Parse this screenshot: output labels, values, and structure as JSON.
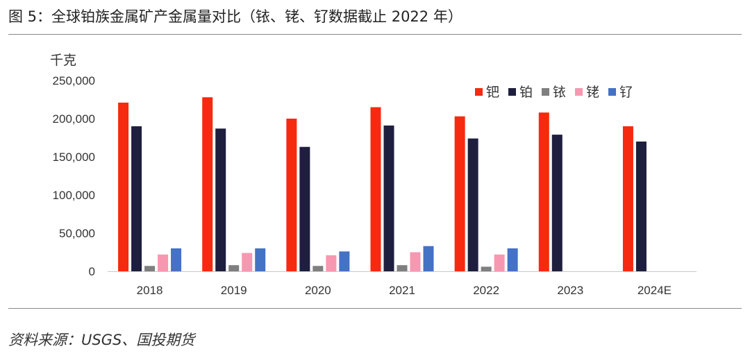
{
  "header": {
    "title": "图 5：全球铂族金属矿产金属量对比（铱、铑、钌数据截止 2022 年）"
  },
  "footer": {
    "source": "资料来源：USGS、国投期货"
  },
  "chart_data": {
    "type": "bar",
    "title": "全球铂族金属矿产金属量对比",
    "ylabel": "千克",
    "xlabel": "",
    "ylim": [
      0,
      250000
    ],
    "yticks": [
      0,
      50000,
      100000,
      150000,
      200000,
      250000
    ],
    "ytick_labels": [
      "0",
      "50,000",
      "100,000",
      "150,000",
      "200,000",
      "250,000"
    ],
    "grid": false,
    "legend_position": "top-right",
    "categories": [
      "2018",
      "2019",
      "2020",
      "2021",
      "2022",
      "2023",
      "2024E"
    ],
    "series": [
      {
        "name": "钯",
        "color": "#f52a0f",
        "values": [
          221000,
          228000,
          200000,
          215000,
          203000,
          208000,
          190000
        ]
      },
      {
        "name": "铂",
        "color": "#1e1e3f",
        "values": [
          190000,
          187000,
          163000,
          191000,
          174000,
          179000,
          170000
        ]
      },
      {
        "name": "铱",
        "color": "#7f7f7f",
        "values": [
          7000,
          8000,
          7000,
          8000,
          6000,
          null,
          null
        ]
      },
      {
        "name": "铑",
        "color": "#f898b0",
        "values": [
          22000,
          24000,
          21000,
          25000,
          22000,
          null,
          null
        ]
      },
      {
        "name": "钌",
        "color": "#4472c4",
        "values": [
          30000,
          30000,
          26000,
          33000,
          30000,
          null,
          null
        ]
      }
    ]
  }
}
